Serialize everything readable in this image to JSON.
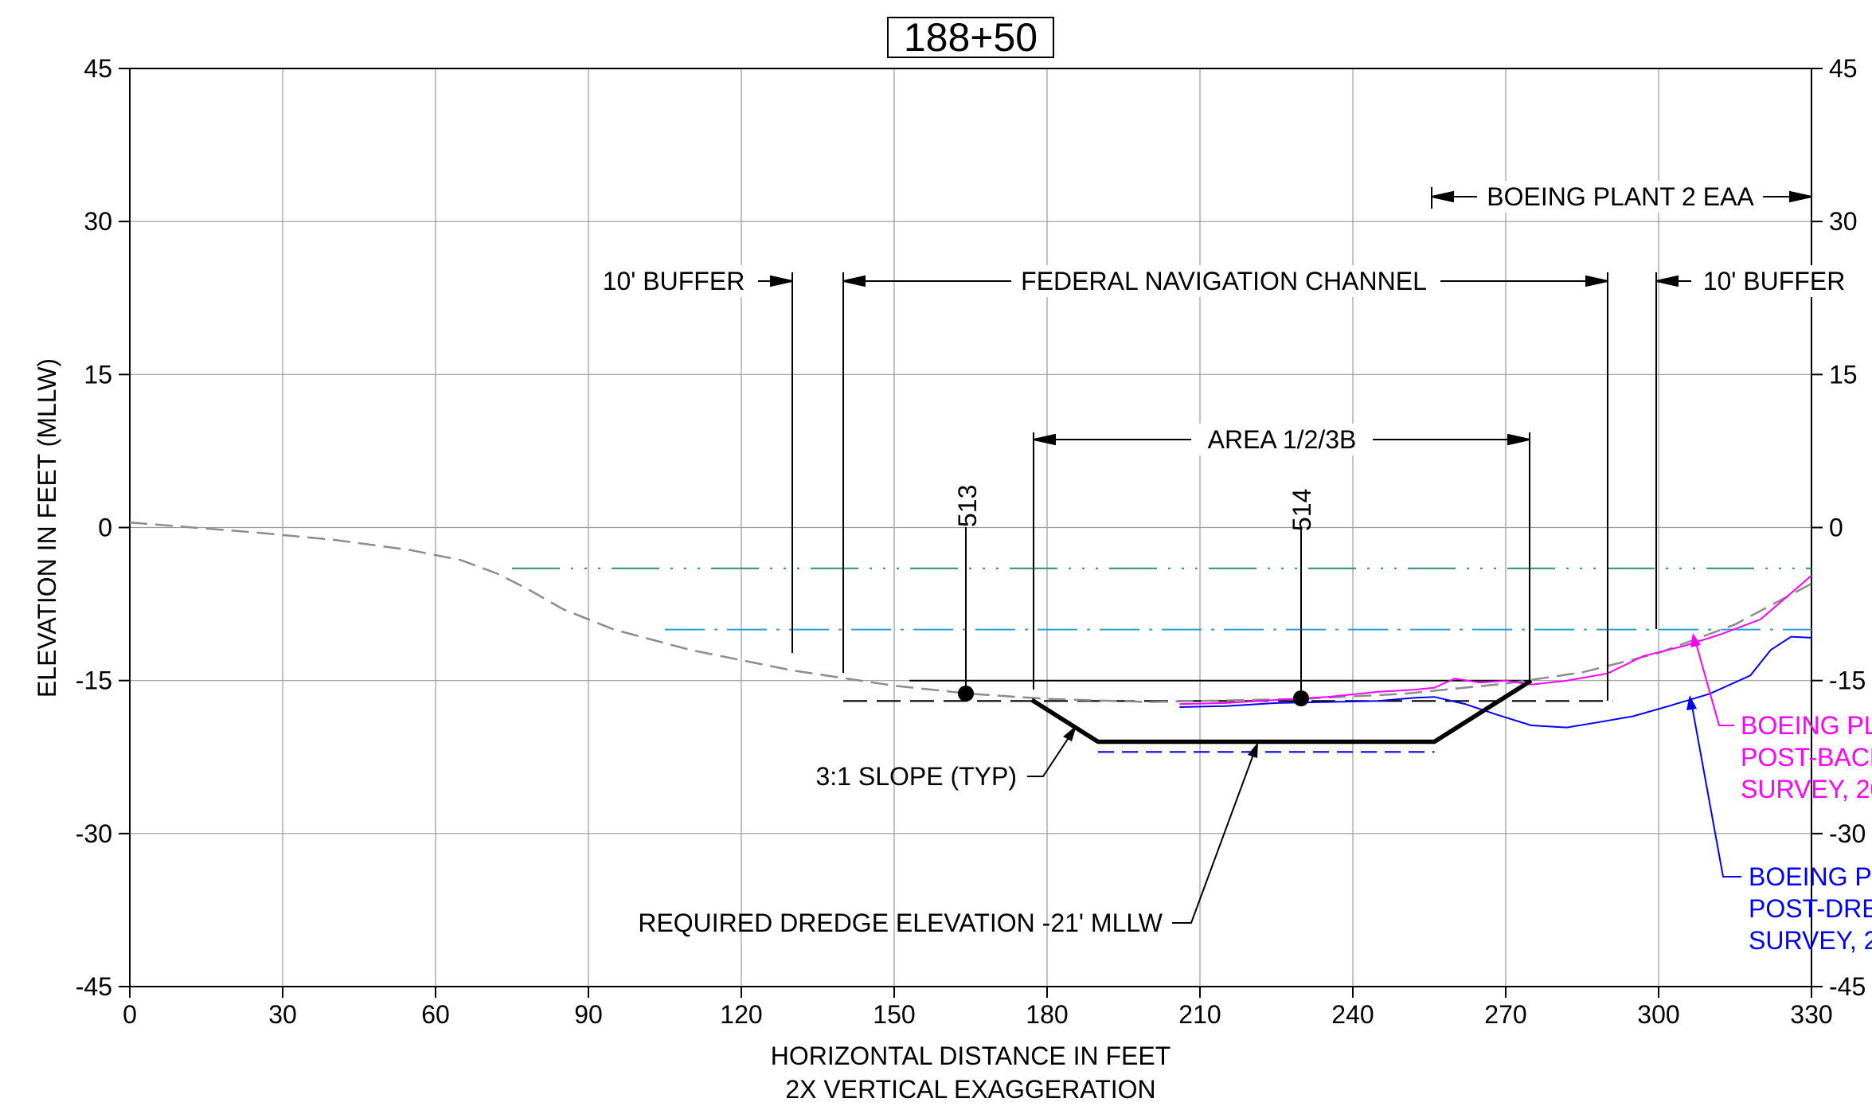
{
  "section": {
    "station_label": "188+50",
    "x_axis_title": "HORIZONTAL DISTANCE IN FEET",
    "x_axis_subtitle": "2X VERTICAL EXAGGERATION",
    "y_axis_title": "ELEVATION IN FEET (MLLW)",
    "x_ticks": [
      0,
      30,
      60,
      90,
      120,
      150,
      180,
      210,
      240,
      270,
      300,
      330
    ],
    "y_ticks": [
      45,
      30,
      15,
      0,
      -15,
      -30,
      -45
    ],
    "xlim": [
      0,
      330
    ],
    "ylim": [
      -45,
      45
    ]
  },
  "labels": {
    "buffer_left": "10' BUFFER",
    "buffer_right": "10' BUFFER",
    "federal_channel": "FEDERAL NAVIGATION CHANNEL",
    "boeing_eaa": "BOEING PLANT 2 EAA",
    "area": "AREA 1/2/3B",
    "slope": "3:1 SLOPE (TYP)",
    "dredge": "REQUIRED DREDGE ELEVATION -21' MLLW",
    "sample_1": "513",
    "sample_2": "514",
    "pink_line1": "BOEING PL",
    "pink_line2": "POST-BACK",
    "pink_line3": "SURVEY, 20",
    "blue_line1": "BOEING PL",
    "blue_line2": "POST-DRE",
    "blue_line3": "SURVEY, 2"
  },
  "colors": {
    "existing_ground": "#8c8c8c",
    "backfill_survey": "#ff00ff",
    "dredge_survey": "#0000ff",
    "mhhw_line": "#2e8b7f",
    "blue_dash_dot": "#2aa0d8",
    "design": "#000000",
    "overdredge": "#0000ff"
  },
  "chart_data": {
    "type": "line",
    "xlabel": "HORIZONTAL DISTANCE IN FEET",
    "ylabel": "ELEVATION IN FEET (MLLW)",
    "xlim": [
      0,
      330
    ],
    "ylim": [
      -45,
      45
    ],
    "grid": true,
    "series": [
      {
        "key": "existing_ground",
        "x": [
          0,
          10,
          25,
          40,
          55,
          65,
          72,
          78,
          85,
          95,
          110,
          130,
          150,
          165,
          180,
          200,
          230,
          250,
          270,
          285,
          300,
          315,
          330
        ],
        "y": [
          0.5,
          0.1,
          -0.5,
          -1.2,
          -2.2,
          -3.2,
          -4.5,
          -6,
          -8,
          -10,
          -12,
          -14,
          -15.5,
          -16.3,
          -16.8,
          -17.1,
          -16.8,
          -16.3,
          -15.3,
          -14.2,
          -12.3,
          -9.5,
          -5.5
        ]
      },
      {
        "key": "backfill_survey",
        "x": [
          206,
          215,
          225,
          235,
          245,
          252,
          256,
          260,
          265,
          270,
          275,
          282,
          290,
          297,
          305,
          312,
          320,
          330
        ],
        "y": [
          -17.3,
          -17.2,
          -16.9,
          -16.6,
          -16.1,
          -15.9,
          -15.7,
          -14.8,
          -15.2,
          -15.0,
          -15.4,
          -15.0,
          -14.3,
          -12.6,
          -11.6,
          -10.5,
          -9.0,
          -4.7
        ]
      },
      {
        "key": "dredge_survey",
        "x": [
          206,
          215,
          225,
          235,
          245,
          252,
          256,
          262,
          268,
          275,
          282,
          288,
          295,
          302,
          310,
          318,
          322,
          326,
          330
        ],
        "y": [
          -17.6,
          -17.5,
          -17.2,
          -17.1,
          -17.0,
          -16.7,
          -16.6,
          -17.3,
          -18.3,
          -19.4,
          -19.6,
          -19.1,
          -18.5,
          -17.5,
          -16.3,
          -14.5,
          -12.0,
          -10.7,
          -10.8
        ]
      },
      {
        "key": "design_template",
        "x": [
          177,
          190,
          256,
          275
        ],
        "y": [
          -16.9,
          -21,
          -21,
          -15
        ]
      },
      {
        "key": "overdredge",
        "x": [
          190,
          256
        ],
        "y": [
          -22,
          -22
        ]
      },
      {
        "key": "black_dashed",
        "x": [
          140,
          291
        ],
        "y": [
          -17,
          -17
        ]
      },
      {
        "key": "solid_top",
        "x": [
          153,
          275
        ],
        "y": [
          -15,
          -15
        ]
      },
      {
        "key": "teal_dash_dot",
        "x": [
          75,
          330
        ],
        "y": [
          -4,
          -4
        ]
      },
      {
        "key": "blue_dash_dot",
        "x": [
          105,
          330
        ],
        "y": [
          -10,
          -10
        ]
      }
    ],
    "samples": [
      {
        "label": "513",
        "x": 164,
        "y": -16.3
      },
      {
        "label": "514",
        "x": 230,
        "y": -16.8
      }
    ]
  }
}
